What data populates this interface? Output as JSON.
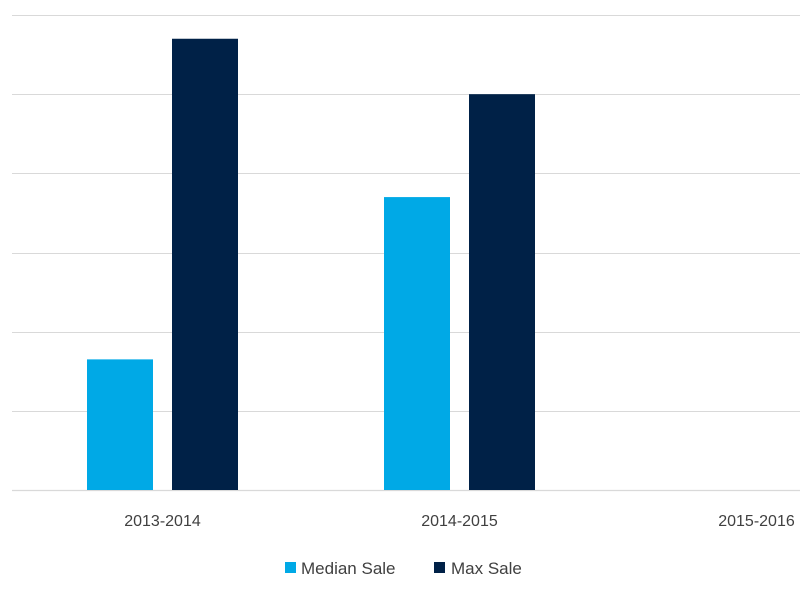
{
  "chart_data": {
    "type": "bar",
    "title": "",
    "xlabel": "",
    "ylabel": "",
    "categories": [
      "2013-2014",
      "2014-2015",
      "2015-2016"
    ],
    "series": [
      {
        "name": "Median Sale",
        "color": "#00a9e6",
        "values": [
          1.65,
          3.7,
          0
        ]
      },
      {
        "name": "Max Sale",
        "color": "#002147",
        "values": [
          5.7,
          5.0,
          0
        ]
      }
    ],
    "ylim": [
      0,
      6
    ],
    "y_axis_labels_visible": false,
    "grid": true,
    "legend_position": "bottom"
  }
}
